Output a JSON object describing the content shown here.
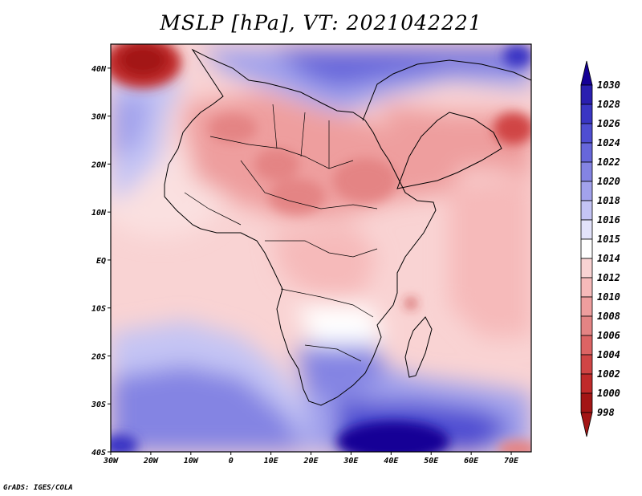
{
  "title": "MSLP [hPa], VT: 2021042221",
  "credit": "GrADS: IGES/COLA",
  "map": {
    "variable": "MSLP",
    "units": "hPa",
    "valid_time": "2021042221",
    "lon_range": [
      -30,
      75
    ],
    "lat_range": [
      -40,
      45
    ],
    "x_ticks": [
      "30W",
      "20W",
      "10W",
      "0",
      "10E",
      "20E",
      "30E",
      "40E",
      "50E",
      "60E",
      "70E"
    ],
    "y_ticks": [
      "40N",
      "30N",
      "20N",
      "10N",
      "EQ",
      "10S",
      "20S",
      "30S",
      "40S"
    ],
    "colorbar": {
      "labels": [
        "1030",
        "1028",
        "1026",
        "1024",
        "1022",
        "1020",
        "1018",
        "1016",
        "1015",
        "1014",
        "1012",
        "1010",
        "1008",
        "1006",
        "1004",
        "1002",
        "1000",
        "998"
      ],
      "colors": [
        "#150096",
        "#2a1fb0",
        "#3a36c4",
        "#4f4ed2",
        "#6767db",
        "#8484e3",
        "#a2a2ec",
        "#c4c4f4",
        "#e3e3fa",
        "#ffffff",
        "#f9d3d3",
        "#f6baba",
        "#ee9e9e",
        "#e48484",
        "#dc6464",
        "#d04545",
        "#c02a2a",
        "#a31515",
        "#a31515"
      ]
    }
  }
}
